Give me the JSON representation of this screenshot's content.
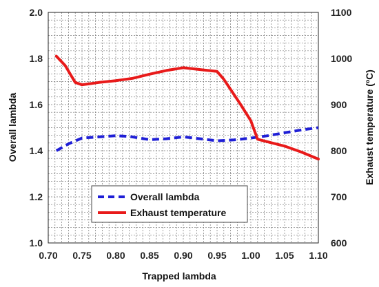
{
  "chart_data": {
    "type": "line",
    "xlabel": "Trapped lambda",
    "ylabel": "Overall lambda",
    "y2label": "Exhaust temperature (ºC)",
    "xlim": [
      0.7,
      1.1
    ],
    "ylim": [
      1.0,
      2.0
    ],
    "y2lim": [
      600,
      1100
    ],
    "x_ticks": [
      "0.70",
      "0.75",
      "0.80",
      "0.85",
      "0.90",
      "0.95",
      "1.00",
      "1.05",
      "1.10"
    ],
    "y_ticks": [
      "1.0",
      "1.2",
      "1.4",
      "1.6",
      "1.8",
      "2.0"
    ],
    "y2_ticks": [
      "600",
      "700",
      "800",
      "900",
      "1000",
      "1100"
    ],
    "grid": true,
    "legend_position": "bottom-center",
    "series": [
      {
        "name": "Overall lambda",
        "axis": "left",
        "color": "#1f1fd6",
        "style": "dashed",
        "x": [
          0.712,
          0.73,
          0.75,
          0.775,
          0.8,
          0.82,
          0.85,
          0.875,
          0.9,
          0.925,
          0.95,
          0.975,
          1.0,
          1.025,
          1.05,
          1.075,
          1.1
        ],
        "y": [
          1.4,
          1.43,
          1.455,
          1.46,
          1.465,
          1.462,
          1.448,
          1.452,
          1.46,
          1.452,
          1.443,
          1.447,
          1.455,
          1.465,
          1.478,
          1.49,
          1.5
        ]
      },
      {
        "name": "Exhaust temperature",
        "axis": "right",
        "color": "#e81a1a",
        "style": "solid",
        "x": [
          0.712,
          0.725,
          0.74,
          0.75,
          0.775,
          0.8,
          0.825,
          0.85,
          0.875,
          0.9,
          0.925,
          0.95,
          0.96,
          0.985,
          1.0,
          1.01,
          1.05,
          1.075,
          1.1
        ],
        "y": [
          1005,
          985,
          948,
          943,
          948,
          952,
          957,
          966,
          974,
          980,
          976,
          972,
          955,
          900,
          865,
          825,
          810,
          797,
          782
        ]
      }
    ]
  }
}
